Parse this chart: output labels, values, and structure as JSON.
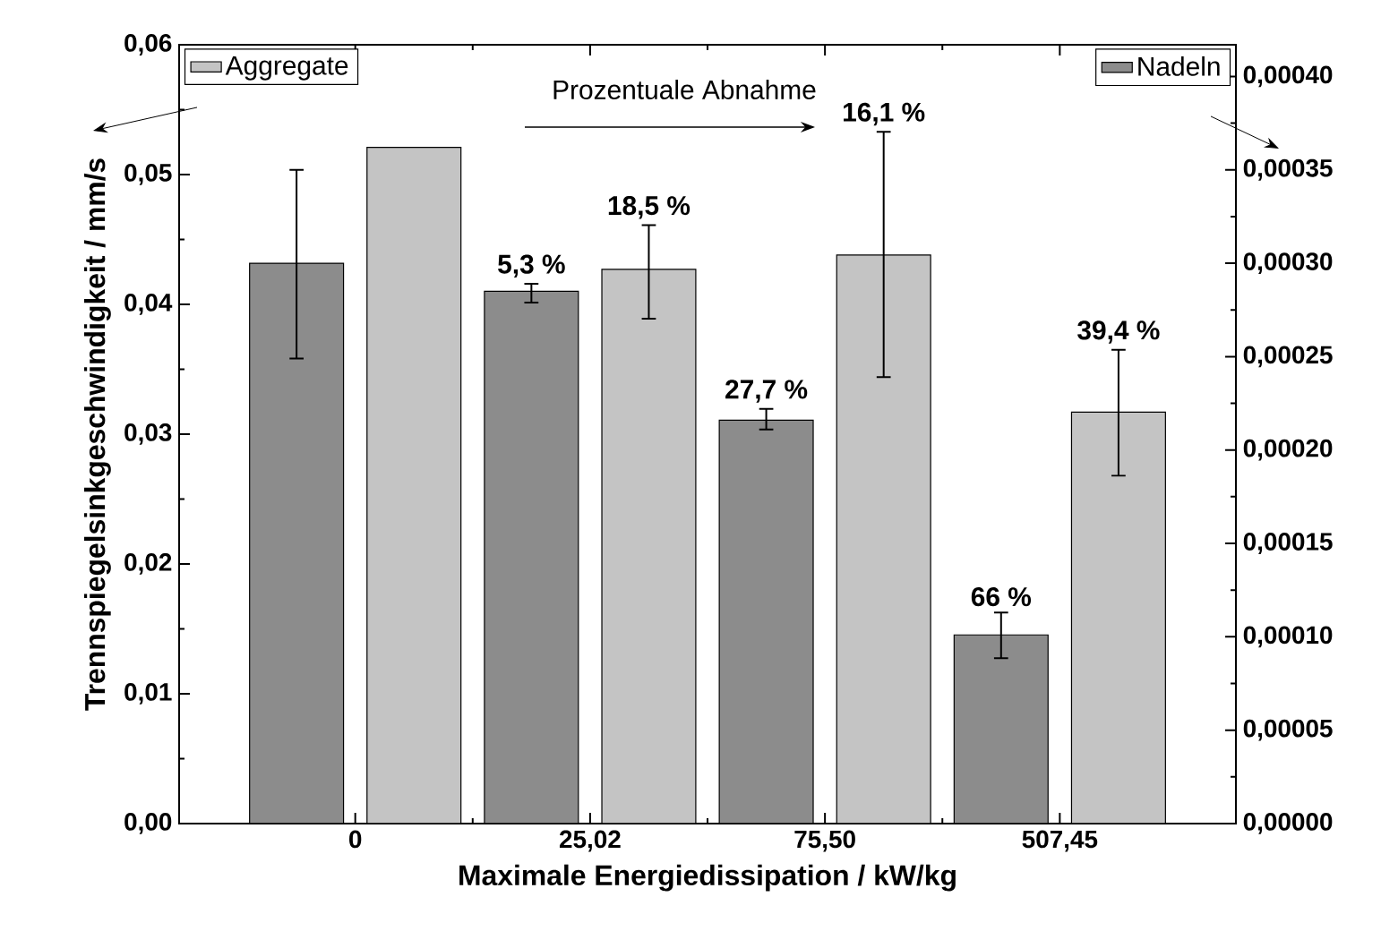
{
  "chart_data": {
    "type": "bar",
    "xlabel": "Maximale Energiedissipation / kW/kg",
    "ylabel": "Trennspiegelsinkgeschwindigkeit / mm/s",
    "categories": [
      "0",
      "25,02",
      "75,50",
      "507,45"
    ],
    "series": [
      {
        "name": "Nadeln",
        "color": "#8c8c8c",
        "axis": "y2",
        "values": [
          0.0003,
          0.000285,
          0.000216,
          0.000101
        ],
        "errors": [
          [
            0.000249,
            0.00035
          ],
          [
            0.000279,
            0.000289
          ],
          [
            0.000211,
            0.000222
          ],
          [
            8.85e-05,
            0.000113
          ]
        ]
      },
      {
        "name": "Aggregate",
        "color": "#c4c4c4",
        "axis": "y",
        "values": [
          0.0521,
          0.0427,
          0.0438,
          0.0317
        ],
        "errors": [
          null,
          [
            0.0389,
            0.0461
          ],
          [
            0.0344,
            0.0533
          ],
          [
            0.0268,
            0.0365
          ]
        ]
      }
    ],
    "ylim": [
      0,
      0.06
    ],
    "yticks": [
      {
        "value": 0,
        "label": "0,00"
      },
      {
        "value": 0.01,
        "label": "0,01"
      },
      {
        "value": 0.02,
        "label": "0,02"
      },
      {
        "value": 0.03,
        "label": "0,03"
      },
      {
        "value": 0.04,
        "label": "0,04"
      },
      {
        "value": 0.05,
        "label": "0,05"
      },
      {
        "value": 0.06,
        "label": "0,06"
      }
    ],
    "y2lim": [
      0,
      0.000417
    ],
    "y2ticks": [
      {
        "value": 0,
        "label": "0,00000"
      },
      {
        "value": 5e-05,
        "label": "0,00005"
      },
      {
        "value": 0.0001,
        "label": "0,00010"
      },
      {
        "value": 0.00015,
        "label": "0,00015"
      },
      {
        "value": 0.0002,
        "label": "0,00020"
      },
      {
        "value": 0.00025,
        "label": "0,00025"
      },
      {
        "value": 0.0003,
        "label": "0,00030"
      },
      {
        "value": 0.00035,
        "label": "0,00035"
      },
      {
        "value": 0.0004,
        "label": "0,00040"
      }
    ],
    "annotations": [
      "Prozentuale Abnahme",
      "5,3 %",
      "18,5 %",
      "27,7 %",
      "16,1 %",
      "66 %",
      "39,4 %"
    ],
    "legend": "top",
    "grid": false
  }
}
